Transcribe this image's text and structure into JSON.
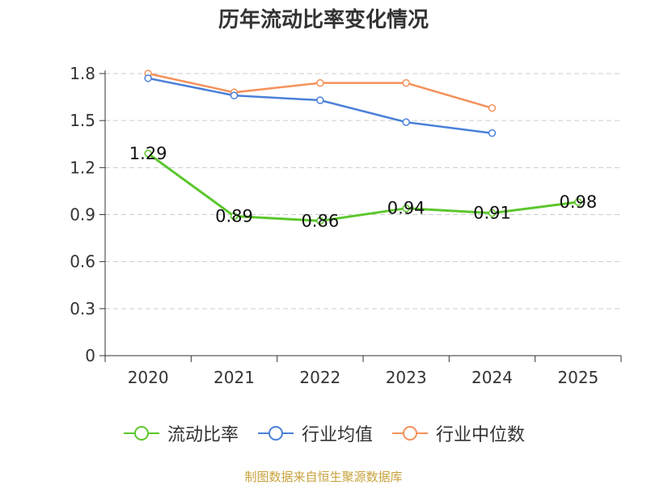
{
  "chart_data": {
    "type": "line",
    "title": "历年流动比率变化情况",
    "xlabel": "",
    "ylabel": "",
    "categories": [
      "2020",
      "2021",
      "2022",
      "2023",
      "2024",
      "2025"
    ],
    "yticks": [
      "0",
      "0.3",
      "0.6",
      "0.9",
      "1.2",
      "1.5",
      "1.8"
    ],
    "ylim": [
      0,
      1.8
    ],
    "grid": true,
    "legend_position": "bottom-center",
    "series": [
      {
        "name": "流动比率",
        "color": "#5cc72c",
        "values": [
          1.29,
          0.89,
          0.86,
          0.94,
          0.91,
          0.98
        ],
        "labels": [
          "1.29",
          "0.89",
          "0.86",
          "0.94",
          "0.91",
          "0.98"
        ]
      },
      {
        "name": "行业均值",
        "color": "#4a80d9",
        "values": [
          1.77,
          1.66,
          1.63,
          1.49,
          1.42,
          null
        ]
      },
      {
        "name": "行业中位数",
        "color": "#f5915a",
        "values": [
          1.8,
          1.68,
          1.74,
          1.74,
          1.58,
          null
        ]
      }
    ]
  },
  "source": "制图数据来自恒生聚源数据库"
}
